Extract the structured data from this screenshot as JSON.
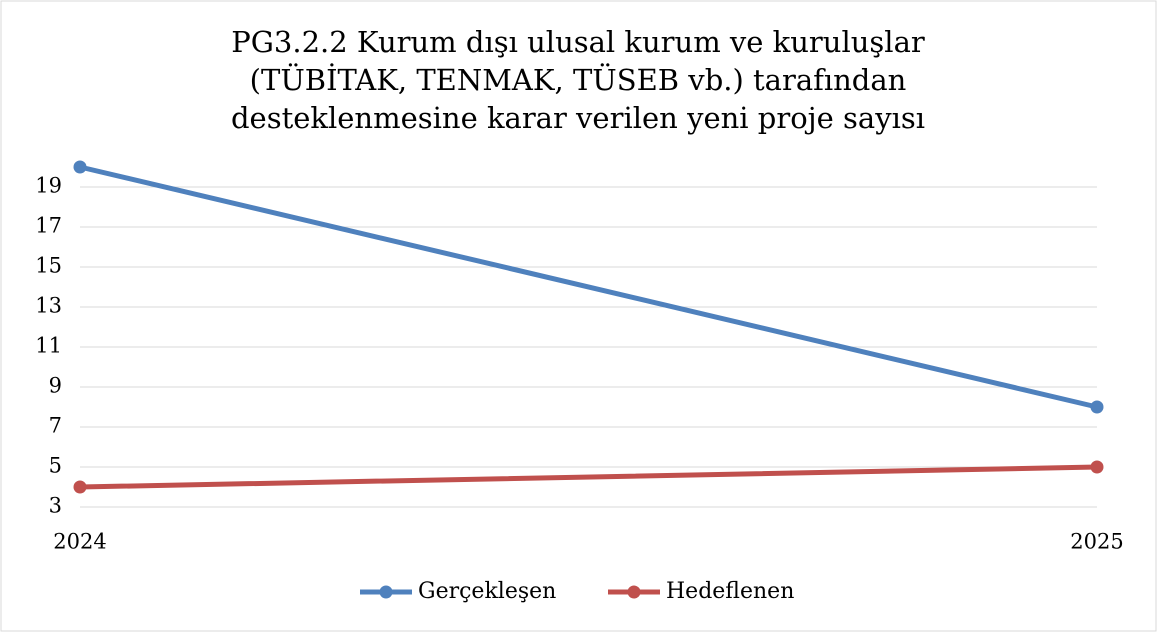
{
  "chart_data": {
    "type": "line",
    "title": [
      "PG3.2.2 Kurum dışı ulusal kurum ve kuruluşlar",
      "(TÜBİTAK, TENMAK, TÜSEB vb.) tarafından",
      "desteklenmesine karar verilen yeni proje sayısı"
    ],
    "categories": [
      "2024",
      "2025"
    ],
    "series": [
      {
        "name": "Gerçekleşen",
        "color": "#4f81bd",
        "values": [
          20,
          8
        ]
      },
      {
        "name": "Hedeflenen",
        "color": "#c0504d",
        "values": [
          4,
          5
        ]
      }
    ],
    "ylim": [
      3,
      20
    ],
    "yticks": [
      3,
      5,
      7,
      9,
      11,
      13,
      15,
      17,
      19
    ],
    "grid": true,
    "legend": "bottom"
  }
}
